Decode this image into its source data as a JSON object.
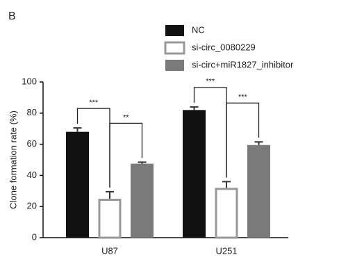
{
  "panel_label": "B",
  "chart_data": {
    "type": "bar",
    "ylabel": "Clone formation rate (%)",
    "categories": [
      "U87",
      "U251"
    ],
    "series": [
      {
        "name": "NC",
        "color": "#111111",
        "values": [
          68,
          82
        ],
        "errors": [
          2.5,
          2
        ]
      },
      {
        "name": "si-circ_0080229",
        "color": "#ffffff",
        "edgecolor": "#999999",
        "values": [
          25,
          32
        ],
        "errors": [
          4.5,
          4
        ]
      },
      {
        "name": "si-circ+miR1827_inhibitor",
        "color": "#7a7a7a",
        "values": [
          47.5,
          59.5
        ],
        "errors": [
          1,
          2
        ]
      }
    ],
    "ylim": [
      0,
      100
    ],
    "yticks": [
      0,
      20,
      40,
      60,
      80,
      100
    ],
    "annotations": [
      {
        "category": "U87",
        "series": [
          "NC",
          "si-circ_0080229"
        ],
        "label": "***"
      },
      {
        "category": "U87",
        "series": [
          "si-circ_0080229",
          "si-circ+miR1827_inhibitor"
        ],
        "label": "**"
      },
      {
        "category": "U251",
        "series": [
          "NC",
          "si-circ_0080229"
        ],
        "label": "***"
      },
      {
        "category": "U251",
        "series": [
          "si-circ_0080229",
          "si-circ+miR1827_inhibitor"
        ],
        "label": "***"
      }
    ]
  }
}
